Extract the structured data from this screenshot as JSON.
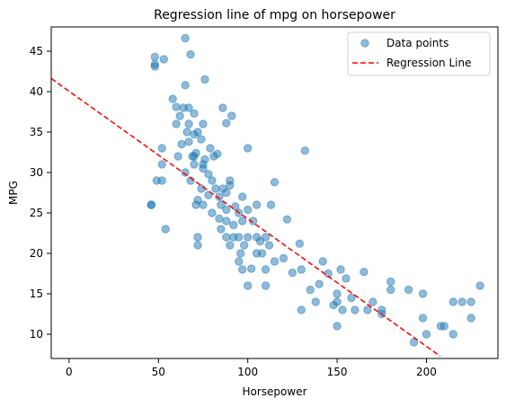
{
  "chart_data": {
    "type": "scatter",
    "title": "Regression line of mpg on horsepower",
    "xlabel": "Horsepower",
    "ylabel": "MPG",
    "xlim": [
      -10,
      240
    ],
    "ylim": [
      7,
      48
    ],
    "x_ticks": [
      0,
      50,
      100,
      150,
      200
    ],
    "y_ticks": [
      10,
      15,
      20,
      25,
      30,
      35,
      40,
      45
    ],
    "grid": false,
    "legend_position": "top-right",
    "colors": {
      "points": "#1f77b4",
      "regression": "#ff0000"
    },
    "series": [
      {
        "name": "Data points",
        "type": "scatter",
        "points": [
          [
            46,
            26
          ],
          [
            46,
            26
          ],
          [
            48,
            43.4
          ],
          [
            48,
            44.3
          ],
          [
            48,
            43.1
          ],
          [
            49,
            29
          ],
          [
            52,
            29
          ],
          [
            52,
            33
          ],
          [
            52,
            31
          ],
          [
            53,
            44
          ],
          [
            54,
            23
          ],
          [
            58,
            39.1
          ],
          [
            60,
            36
          ],
          [
            60,
            38.1
          ],
          [
            61,
            32
          ],
          [
            62,
            37
          ],
          [
            63,
            33.5
          ],
          [
            64,
            38
          ],
          [
            65,
            40.8
          ],
          [
            65,
            46.6
          ],
          [
            65,
            30
          ],
          [
            66,
            35
          ],
          [
            67,
            36
          ],
          [
            67,
            33.8
          ],
          [
            67,
            38
          ],
          [
            68,
            44.6
          ],
          [
            68,
            29
          ],
          [
            69,
            32
          ],
          [
            70,
            37.3
          ],
          [
            70,
            34.7
          ],
          [
            70,
            32
          ],
          [
            70,
            31
          ],
          [
            71,
            32.4
          ],
          [
            71,
            26
          ],
          [
            72,
            35
          ],
          [
            72,
            21
          ],
          [
            72,
            22
          ],
          [
            72,
            26.6
          ],
          [
            74,
            34.1
          ],
          [
            74,
            28
          ],
          [
            75,
            31
          ],
          [
            75,
            30.5
          ],
          [
            75,
            36
          ],
          [
            75,
            26
          ],
          [
            76,
            41.5
          ],
          [
            76,
            31.6
          ],
          [
            78,
            29.8
          ],
          [
            78,
            27.2
          ],
          [
            79,
            33
          ],
          [
            80,
            25
          ],
          [
            80,
            29
          ],
          [
            81,
            32
          ],
          [
            82,
            28
          ],
          [
            83,
            32.3
          ],
          [
            84,
            27
          ],
          [
            84,
            24.3
          ],
          [
            85,
            26
          ],
          [
            85,
            23
          ],
          [
            86,
            38
          ],
          [
            86,
            28
          ],
          [
            88,
            22
          ],
          [
            88,
            24
          ],
          [
            88,
            36.1
          ],
          [
            88,
            27.5
          ],
          [
            88,
            25.4
          ],
          [
            90,
            29
          ],
          [
            90,
            21
          ],
          [
            90,
            28.4
          ],
          [
            91,
            37
          ],
          [
            92,
            22
          ],
          [
            92,
            23.5
          ],
          [
            93,
            25.8
          ],
          [
            95,
            19
          ],
          [
            95,
            22
          ],
          [
            95,
            25
          ],
          [
            96,
            20
          ],
          [
            97,
            24
          ],
          [
            97,
            18
          ],
          [
            97,
            27
          ],
          [
            98,
            21
          ],
          [
            100,
            33
          ],
          [
            100,
            22
          ],
          [
            100,
            25.4
          ],
          [
            100,
            16
          ],
          [
            102,
            18.1
          ],
          [
            103,
            24
          ],
          [
            105,
            26
          ],
          [
            105,
            20
          ],
          [
            105,
            22
          ],
          [
            107,
            21.5
          ],
          [
            108,
            20
          ],
          [
            110,
            18
          ],
          [
            110,
            16
          ],
          [
            110,
            22
          ],
          [
            112,
            21
          ],
          [
            113,
            26
          ],
          [
            115,
            28.8
          ],
          [
            115,
            19
          ],
          [
            120,
            19.4
          ],
          [
            122,
            24.2
          ],
          [
            125,
            17.6
          ],
          [
            129,
            21.2
          ],
          [
            130,
            18
          ],
          [
            130,
            13
          ],
          [
            132,
            32.7
          ],
          [
            135,
            15.5
          ],
          [
            138,
            14
          ],
          [
            140,
            16.2
          ],
          [
            142,
            19
          ],
          [
            145,
            17.5
          ],
          [
            148,
            13.6
          ],
          [
            150,
            14
          ],
          [
            150,
            15
          ],
          [
            150,
            11
          ],
          [
            152,
            18
          ],
          [
            153,
            13
          ],
          [
            155,
            16.9
          ],
          [
            158,
            14.5
          ],
          [
            160,
            13
          ],
          [
            165,
            17.7
          ],
          [
            167,
            13
          ],
          [
            170,
            14
          ],
          [
            175,
            12.5
          ],
          [
            175,
            13
          ],
          [
            180,
            15.5
          ],
          [
            180,
            16.5
          ],
          [
            190,
            15.5
          ],
          [
            193,
            9
          ],
          [
            198,
            12
          ],
          [
            198,
            15
          ],
          [
            200,
            10
          ],
          [
            208,
            11
          ],
          [
            210,
            11
          ],
          [
            215,
            14
          ],
          [
            215,
            10
          ],
          [
            220,
            14
          ],
          [
            225,
            12
          ],
          [
            225,
            14
          ],
          [
            230,
            16
          ]
        ]
      },
      {
        "name": "Regression Line",
        "type": "line",
        "style": "dashed",
        "points": [
          [
            -10,
            41.62
          ],
          [
            207.7,
            7.28
          ]
        ]
      }
    ]
  }
}
